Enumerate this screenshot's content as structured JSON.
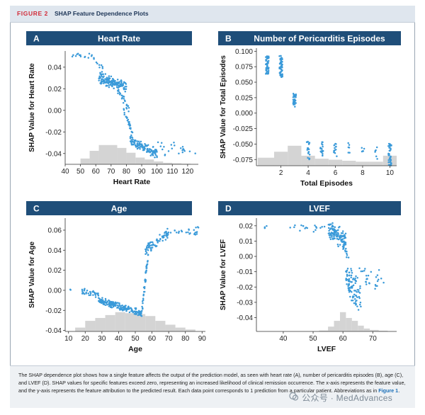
{
  "figure": {
    "label": "FIGURE 2",
    "title": "SHAP Feature Dependence Plots",
    "caption": "The SHAP dependence plot shows how a single feature affects the output of the prediction model, as seen with heart rate (A), number of pericarditis episodes (B), age (C), and LVEF (D). SHAP values for specific features exceed zero, representing an increased likelihood of clinical remission occurrence. The x-axis represents the feature value, and the y-axis represents the feature attribution to the predicted result. Each data point corresponds to 1 prediction from a particular patient. Abbreviations as in",
    "caption_link": "Figure 1",
    "caption_end": ".",
    "watermark": "公众号 · MedAdvances"
  },
  "colors": {
    "panel_header": "#1f4e79",
    "point": "#3a9ad9",
    "hist": "#d4d4d4",
    "accent": "#d22d3a"
  },
  "chart_data": [
    {
      "panel": "A",
      "type": "scatter",
      "title": "Heart Rate",
      "xlabel": "Heart Rate",
      "ylabel": "SHAP Value for Heart Rate",
      "xlim": [
        40,
        127
      ],
      "ylim": [
        -0.05,
        0.055
      ],
      "xticks": [
        40,
        50,
        60,
        70,
        80,
        90,
        100,
        110,
        120
      ],
      "yticks": [
        -0.04,
        -0.02,
        0.0,
        0.02,
        0.04
      ],
      "ytick_labels": [
        "-0.04",
        "-0.02",
        "0.00",
        "0.02",
        "0.04"
      ],
      "hist": {
        "bins": [
          [
            50,
            56,
            0.3
          ],
          [
            56,
            62,
            0.7
          ],
          [
            62,
            68,
            1.0
          ],
          [
            68,
            74,
            1.0
          ],
          [
            74,
            80,
            0.85
          ],
          [
            80,
            86,
            0.6
          ],
          [
            86,
            92,
            0.35
          ],
          [
            92,
            98,
            0.25
          ],
          [
            98,
            104,
            0.15
          ],
          [
            104,
            110,
            0.08
          ],
          [
            110,
            116,
            0.05
          ],
          [
            116,
            122,
            0.03
          ]
        ]
      },
      "segments": [
        {
          "x0": 44,
          "x1": 58,
          "y0": 0.051,
          "y1": 0.05,
          "spread": 0.003,
          "n": 14
        },
        {
          "x0": 58,
          "x1": 65,
          "y0": 0.048,
          "y1": 0.038,
          "spread": 0.004,
          "n": 10
        },
        {
          "x0": 62,
          "x1": 80,
          "y0": 0.03,
          "y1": 0.022,
          "spread": 0.006,
          "n": 150
        },
        {
          "x0": 74,
          "x1": 82,
          "y0": 0.02,
          "y1": 0.0,
          "spread": 0.005,
          "n": 25
        },
        {
          "x0": 78,
          "x1": 84,
          "y0": 0.0,
          "y1": -0.022,
          "spread": 0.005,
          "n": 30
        },
        {
          "x0": 82,
          "x1": 100,
          "y0": -0.028,
          "y1": -0.04,
          "spread": 0.005,
          "n": 110
        },
        {
          "x0": 100,
          "x1": 126,
          "y0": -0.035,
          "y1": -0.038,
          "spread": 0.008,
          "n": 22
        }
      ]
    },
    {
      "panel": "B",
      "type": "scatter",
      "title": "Number of Pericarditis Episodes",
      "xlabel": "Total Episodes",
      "ylabel": "SHAP Value for Total Episodes",
      "xlim": [
        0.2,
        10.5
      ],
      "ylim": [
        -0.085,
        0.105
      ],
      "xticks": [
        2,
        4,
        6,
        8,
        10
      ],
      "yticks": [
        -0.075,
        -0.05,
        -0.025,
        0.0,
        0.025,
        0.05,
        0.075,
        0.1
      ],
      "ytick_labels": [
        "-0.075",
        "-0.050",
        "-0.025",
        "0.000",
        "0.025",
        "0.050",
        "0.075",
        "0.100"
      ],
      "hist": {
        "bins": [
          [
            0.3,
            1.5,
            0.4
          ],
          [
            1.5,
            2.5,
            0.7
          ],
          [
            2.5,
            3.5,
            1.0
          ],
          [
            3.5,
            4.5,
            0.5
          ],
          [
            4.5,
            5.5,
            0.35
          ],
          [
            5.5,
            6.5,
            0.3
          ],
          [
            6.5,
            7.5,
            0.25
          ],
          [
            7.5,
            8.5,
            0.2
          ],
          [
            8.5,
            9.5,
            0.2
          ],
          [
            9.5,
            10.5,
            0.5
          ]
        ]
      },
      "clusters": [
        {
          "x": 1,
          "ymin": 0.063,
          "ymax": 0.092,
          "n": 45
        },
        {
          "x": 2,
          "ymin": 0.058,
          "ymax": 0.093,
          "n": 55
        },
        {
          "x": 3,
          "ymin": 0.01,
          "ymax": 0.032,
          "n": 30
        },
        {
          "x": 4,
          "ymin": -0.075,
          "ymax": -0.045,
          "n": 22
        },
        {
          "x": 5,
          "ymin": -0.07,
          "ymax": -0.046,
          "n": 18
        },
        {
          "x": 6,
          "ymin": -0.07,
          "ymax": -0.046,
          "n": 14
        },
        {
          "x": 7,
          "ymin": -0.066,
          "ymax": -0.048,
          "n": 6
        },
        {
          "x": 8,
          "ymin": -0.07,
          "ymax": -0.05,
          "n": 5
        },
        {
          "x": 9,
          "ymin": -0.075,
          "ymax": -0.05,
          "n": 6
        },
        {
          "x": 10,
          "ymin": -0.085,
          "ymax": -0.048,
          "n": 40
        }
      ]
    },
    {
      "panel": "C",
      "type": "scatter",
      "title": "Age",
      "xlabel": "Age",
      "ylabel": "SHAP Value for Age",
      "xlim": [
        8,
        92
      ],
      "ylim": [
        -0.041,
        0.072
      ],
      "xticks": [
        10,
        20,
        30,
        40,
        50,
        60,
        70,
        80,
        90
      ],
      "yticks": [
        -0.04,
        -0.02,
        0.0,
        0.02,
        0.04,
        0.06
      ],
      "ytick_labels": [
        "-0.04",
        "-0.02",
        "0.00",
        "0.02",
        "0.04",
        "0.06"
      ],
      "hist": {
        "bins": [
          [
            14,
            20,
            0.2
          ],
          [
            20,
            26,
            0.55
          ],
          [
            26,
            32,
            0.7
          ],
          [
            32,
            38,
            0.85
          ],
          [
            38,
            44,
            1.0
          ],
          [
            44,
            50,
            0.95
          ],
          [
            50,
            56,
            0.9
          ],
          [
            56,
            62,
            0.8
          ],
          [
            62,
            68,
            0.55
          ],
          [
            68,
            74,
            0.35
          ],
          [
            74,
            80,
            0.2
          ],
          [
            80,
            86,
            0.1
          ]
        ]
      },
      "segments": [
        {
          "x0": 10,
          "x1": 14,
          "y0": 0.0,
          "y1": 0.0,
          "spread": 0.002,
          "n": 2
        },
        {
          "x0": 18,
          "x1": 28,
          "y0": 0.0,
          "y1": -0.005,
          "spread": 0.004,
          "n": 30
        },
        {
          "x0": 28,
          "x1": 54,
          "y0": -0.01,
          "y1": -0.023,
          "spread": 0.004,
          "n": 190
        },
        {
          "x0": 54,
          "x1": 58,
          "y0": -0.02,
          "y1": 0.04,
          "spread": 0.006,
          "n": 40
        },
        {
          "x0": 56,
          "x1": 70,
          "y0": 0.04,
          "y1": 0.058,
          "spread": 0.006,
          "n": 70
        },
        {
          "x0": 70,
          "x1": 88,
          "y0": 0.058,
          "y1": 0.06,
          "spread": 0.005,
          "n": 25
        }
      ]
    },
    {
      "panel": "D",
      "type": "scatter",
      "title": "LVEF",
      "xlabel": "LVEF",
      "ylabel": "SHAP Value for LVEF",
      "xlim": [
        31,
        78
      ],
      "ylim": [
        -0.049,
        0.025
      ],
      "xticks": [
        40,
        50,
        60,
        70
      ],
      "yticks": [
        -0.04,
        -0.03,
        -0.02,
        -0.01,
        0.0,
        0.01,
        0.02
      ],
      "ytick_labels": [
        "-0.04",
        "-0.03",
        "-0.02",
        "-0.01",
        "0.00",
        "0.01",
        "0.02"
      ],
      "hist": {
        "bins": [
          [
            52,
            55,
            0.05
          ],
          [
            55,
            57,
            0.25
          ],
          [
            57,
            59,
            0.55
          ],
          [
            59,
            61,
            1.0
          ],
          [
            61,
            63,
            0.7
          ],
          [
            63,
            65,
            0.55
          ],
          [
            65,
            67,
            0.3
          ],
          [
            67,
            69,
            0.15
          ],
          [
            69,
            72,
            0.08
          ],
          [
            72,
            75,
            0.04
          ]
        ]
      },
      "segments": [
        {
          "x0": 33,
          "x1": 35,
          "y0": 0.019,
          "y1": 0.019,
          "spread": 0.001,
          "n": 3
        },
        {
          "x0": 42,
          "x1": 55,
          "y0": 0.019,
          "y1": 0.018,
          "spread": 0.003,
          "n": 18
        },
        {
          "x0": 55,
          "x1": 61,
          "y0": 0.018,
          "y1": 0.01,
          "spread": 0.007,
          "n": 110
        },
        {
          "x0": 60,
          "x1": 62,
          "y0": 0.008,
          "y1": 0.0,
          "spread": 0.004,
          "n": 15
        },
        {
          "x0": 61,
          "x1": 66,
          "y0": -0.012,
          "y1": -0.03,
          "spread": 0.012,
          "n": 90
        },
        {
          "x0": 64,
          "x1": 74,
          "y0": -0.01,
          "y1": -0.018,
          "spread": 0.008,
          "n": 30
        }
      ]
    }
  ]
}
